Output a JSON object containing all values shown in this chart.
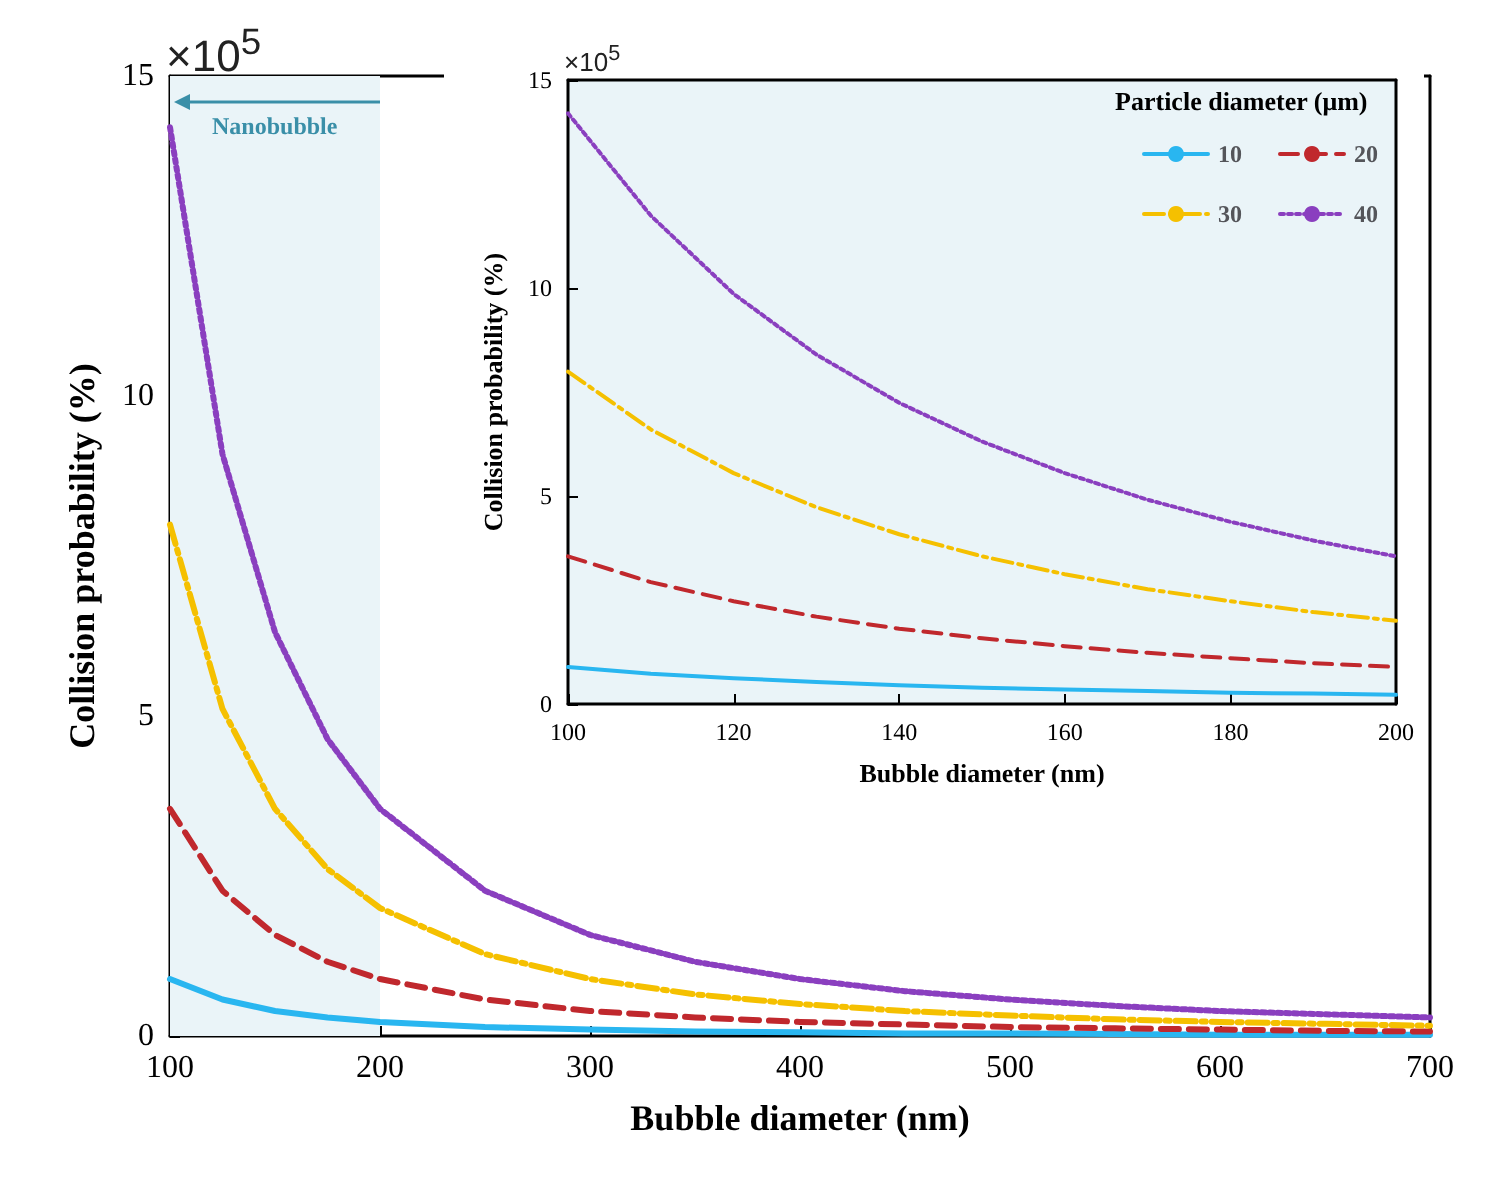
{
  "chart_data": [
    {
      "type": "line",
      "xlabel": "Bubble diameter (nm)",
      "ylabel": "Collision probability (%)",
      "annotations": [
        {
          "text": "Nanobubble",
          "x": 100,
          "y": 14.6
        },
        {
          "text": "×10$^{5}$",
          "x": 100,
          "y": 15
        }
      ],
      "x": [
        100,
        125,
        150,
        175,
        200,
        250,
        300,
        350,
        400,
        450,
        500,
        550,
        600,
        650,
        700
      ],
      "xlim": [
        100,
        700
      ],
      "xticks": [
        100,
        200,
        300,
        400,
        500,
        600,
        700
      ],
      "ylim": [
        0,
        15
      ],
      "yticks": [
        0,
        5,
        10,
        15
      ],
      "grid": false,
      "legend": false,
      "marker": "none",
      "bands": [
        {
          "axis": "x",
          "from": 100,
          "to": 200,
          "color": "#eaf4f8"
        }
      ],
      "series": [
        {
          "color": "#29b6f0",
          "line_style": "solid",
          "values": [
            0.89,
            0.57,
            0.39,
            0.29,
            0.22,
            0.14,
            0.1,
            0.07,
            0.06,
            0.04,
            0.04,
            0.03,
            0.02,
            0.02,
            0.02
          ]
        },
        {
          "color": "#c0282d",
          "line_style": "dashed",
          "values": [
            3.55,
            2.27,
            1.58,
            1.16,
            0.89,
            0.57,
            0.39,
            0.29,
            0.22,
            0.18,
            0.14,
            0.12,
            0.1,
            0.08,
            0.07
          ]
        },
        {
          "color": "#f5c000",
          "line_style": "dashdot",
          "values": [
            7.99,
            5.11,
            3.55,
            2.61,
            2.0,
            1.28,
            0.89,
            0.65,
            0.5,
            0.39,
            0.32,
            0.26,
            0.22,
            0.19,
            0.16
          ]
        },
        {
          "color": "#8a3fbf",
          "line_style": "dotted",
          "values": [
            14.2,
            9.09,
            6.31,
            4.64,
            3.55,
            2.27,
            1.58,
            1.16,
            0.89,
            0.7,
            0.57,
            0.47,
            0.39,
            0.34,
            0.29
          ]
        }
      ]
    },
    {
      "type": "line",
      "xlabel": "Bubble diameter (nm)",
      "ylabel": "Collision probability (%)",
      "annotations": [
        "×10$^{5}$"
      ],
      "legend_title": "Particle diameter (μm)",
      "x": [
        100,
        110,
        120,
        130,
        140,
        150,
        160,
        170,
        180,
        190,
        200
      ],
      "xlim": [
        100,
        200
      ],
      "xticks": [
        100,
        120,
        140,
        160,
        180,
        200
      ],
      "ylim": [
        0,
        15
      ],
      "yticks": [
        0,
        5,
        10,
        15
      ],
      "grid": false,
      "legend": "top right",
      "marker": "none",
      "series": [
        {
          "name": "10",
          "color": "#29b6f0",
          "line_style": "solid",
          "values": [
            0.89,
            0.73,
            0.62,
            0.53,
            0.45,
            0.39,
            0.35,
            0.31,
            0.27,
            0.25,
            0.22
          ]
        },
        {
          "name": "20",
          "color": "#c0282d",
          "line_style": "dashed",
          "values": [
            3.55,
            2.93,
            2.47,
            2.1,
            1.81,
            1.58,
            1.39,
            1.23,
            1.1,
            0.98,
            0.89
          ]
        },
        {
          "name": "30",
          "color": "#f5c000",
          "line_style": "dashdot",
          "values": [
            7.99,
            6.6,
            5.55,
            4.73,
            4.08,
            3.55,
            3.12,
            2.76,
            2.47,
            2.21,
            2.0
          ]
        },
        {
          "name": "40",
          "color": "#8a3fbf",
          "line_style": "dotted",
          "values": [
            14.2,
            11.74,
            9.86,
            8.4,
            7.24,
            6.31,
            5.55,
            4.91,
            4.38,
            3.93,
            3.55
          ]
        }
      ]
    }
  ]
}
